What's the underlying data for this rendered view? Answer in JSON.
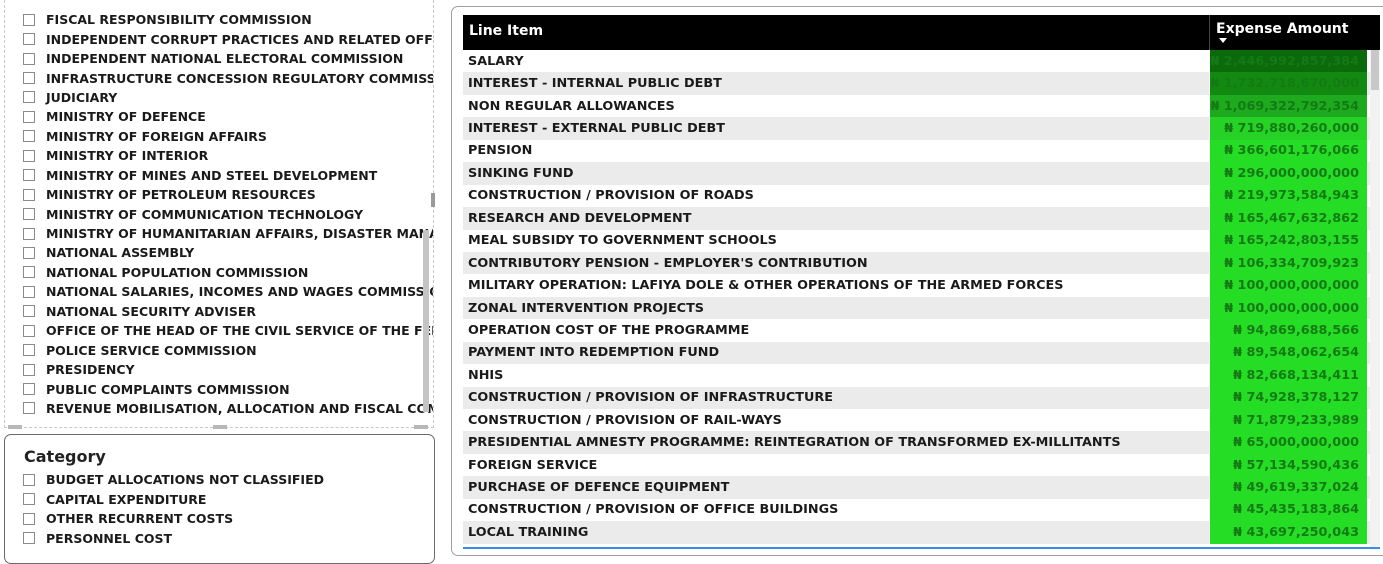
{
  "org_slicer": {
    "items": [
      "FISCAL RESPONSIBILITY COMMISSION",
      "INDEPENDENT CORRUPT PRACTICES AND RELATED OFFEN...",
      "INDEPENDENT NATIONAL ELECTORAL COMMISSION",
      "INFRASTRUCTURE CONCESSION REGULATORY COMMISSION",
      "JUDICIARY",
      "MINISTRY OF DEFENCE",
      "MINISTRY OF FOREIGN AFFAIRS",
      "MINISTRY OF INTERIOR",
      "MINISTRY OF MINES AND STEEL DEVELOPMENT",
      "MINISTRY OF PETROLEUM RESOURCES",
      "MINISTRY OF COMMUNICATION TECHNOLOGY",
      "MINISTRY OF HUMANITARIAN AFFAIRS, DISASTER MANAG...",
      "NATIONAL ASSEMBLY",
      "NATIONAL POPULATION COMMISSION",
      "NATIONAL SALARIES, INCOMES AND WAGES COMMISSION",
      "NATIONAL SECURITY ADVISER",
      "OFFICE OF THE HEAD OF THE CIVIL SERVICE OF THE FEDERA...",
      "POLICE SERVICE COMMISSION",
      "PRESIDENCY",
      "PUBLIC COMPLAINTS COMMISSION",
      "REVENUE MOBILISATION, ALLOCATION AND FISCAL COMM..."
    ]
  },
  "category_slicer": {
    "title": "Category",
    "items": [
      "BUDGET ALLOCATIONS NOT CLASSIFIED",
      "CAPITAL EXPENDITURE",
      "OTHER RECURRENT COSTS",
      "PERSONNEL COST"
    ]
  },
  "table": {
    "col_line_item": "Line Item",
    "col_amount": "Expense Amount",
    "sort_indicator": "sort-descending",
    "rows": [
      {
        "name": "SALARY",
        "amount": "₦ 2,446,992,857,384",
        "color": "#0b6b0b"
      },
      {
        "name": "INTEREST - INTERNAL PUBLIC DEBT",
        "amount": "₦ 1,732,718,670,000",
        "color": "#128a12"
      },
      {
        "name": "NON REGULAR ALLOWANCES",
        "amount": "₦ 1,069,322,792,354",
        "color": "#1eaa1e"
      },
      {
        "name": "INTEREST - EXTERNAL PUBLIC DEBT",
        "amount": "₦ 719,880,260,000",
        "color": "#26d226"
      },
      {
        "name": "PENSION",
        "amount": "₦ 366,601,176,066",
        "color": "#26dd26"
      },
      {
        "name": "SINKING FUND",
        "amount": "₦ 296,000,000,000",
        "color": "#26dd26"
      },
      {
        "name": "CONSTRUCTION / PROVISION OF ROADS",
        "amount": "₦ 219,973,584,943",
        "color": "#26dd26"
      },
      {
        "name": "RESEARCH AND DEVELOPMENT",
        "amount": "₦ 165,467,632,862",
        "color": "#26dd26"
      },
      {
        "name": "MEAL SUBSIDY TO GOVERNMENT SCHOOLS",
        "amount": "₦ 165,242,803,155",
        "color": "#26dd26"
      },
      {
        "name": "CONTRIBUTORY PENSION - EMPLOYER'S CONTRIBUTION",
        "amount": "₦ 106,334,709,923",
        "color": "#26dd26"
      },
      {
        "name": "MILITARY OPERATION: LAFIYA DOLE & OTHER OPERATIONS OF THE ARMED FORCES",
        "amount": "₦ 100,000,000,000",
        "color": "#26dd26"
      },
      {
        "name": "ZONAL INTERVENTION PROJECTS",
        "amount": "₦ 100,000,000,000",
        "color": "#26dd26"
      },
      {
        "name": "OPERATION COST OF THE PROGRAMME",
        "amount": "₦ 94,869,688,566",
        "color": "#26dd26"
      },
      {
        "name": "PAYMENT INTO REDEMPTION FUND",
        "amount": "₦ 89,548,062,654",
        "color": "#26dd26"
      },
      {
        "name": "NHIS",
        "amount": "₦ 82,668,134,411",
        "color": "#26dd26"
      },
      {
        "name": "CONSTRUCTION / PROVISION OF INFRASTRUCTURE",
        "amount": "₦ 74,928,378,127",
        "color": "#26dd26"
      },
      {
        "name": "CONSTRUCTION / PROVISION OF RAIL-WAYS",
        "amount": "₦ 71,879,233,989",
        "color": "#26dd26"
      },
      {
        "name": "PRESIDENTIAL AMNESTY PROGRAMME: REINTEGRATION OF TRANSFORMED EX-MILLITANTS",
        "amount": "₦ 65,000,000,000",
        "color": "#26dd26"
      },
      {
        "name": "FOREIGN SERVICE",
        "amount": "₦ 57,134,590,436",
        "color": "#26dd26"
      },
      {
        "name": "PURCHASE OF DEFENCE EQUIPMENT",
        "amount": "₦ 49,619,337,024",
        "color": "#26dd26"
      },
      {
        "name": "CONSTRUCTION / PROVISION OF OFFICE BUILDINGS",
        "amount": "₦ 45,435,183,864",
        "color": "#26dd26"
      },
      {
        "name": "LOCAL TRAINING",
        "amount": "₦ 43,697,250,043",
        "color": "#26dd26"
      }
    ]
  }
}
